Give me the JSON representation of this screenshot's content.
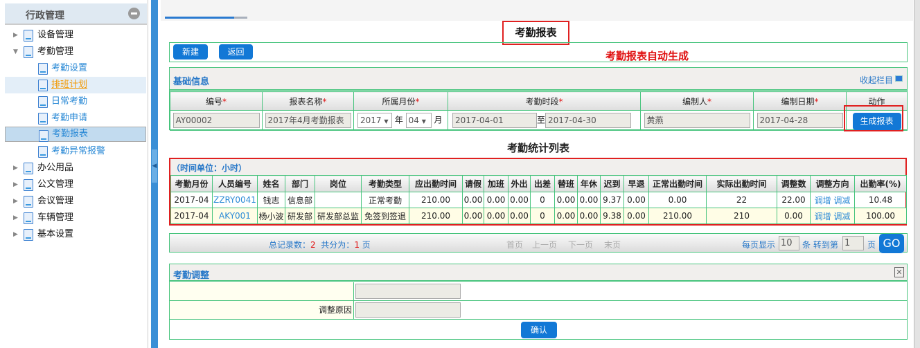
{
  "sidebar": {
    "title": "行政管理",
    "items": [
      {
        "label": "设备管理",
        "level": "top",
        "expanded": false
      },
      {
        "label": "考勤管理",
        "level": "top",
        "expanded": true
      },
      {
        "label": "考勤设置",
        "level": "sub"
      },
      {
        "label": "排班计划",
        "level": "sub",
        "state": "hover"
      },
      {
        "label": "日常考勤",
        "level": "sub"
      },
      {
        "label": "考勤申请",
        "level": "sub"
      },
      {
        "label": "考勤报表",
        "level": "sub",
        "state": "selected"
      },
      {
        "label": "考勤异常报警",
        "level": "sub"
      },
      {
        "label": "办公用品",
        "level": "top",
        "expanded": false
      },
      {
        "label": "公文管理",
        "level": "top",
        "expanded": false
      },
      {
        "label": "会议管理",
        "level": "top",
        "expanded": false
      },
      {
        "label": "车辆管理",
        "level": "top",
        "expanded": false
      },
      {
        "label": "基本设置",
        "level": "top",
        "expanded": false
      }
    ]
  },
  "page": {
    "title": "考勤报表",
    "note": "考勤报表自动生成"
  },
  "toolbar": {
    "new": "新建",
    "back": "返回"
  },
  "basic": {
    "title": "基础信息",
    "collapse": "收起栏目",
    "headers": [
      "编号",
      "报表名称",
      "所属月份",
      "考勤时段",
      "编制人",
      "编制日期",
      "动作"
    ],
    "code": "AY00002",
    "name": "2017年4月考勤报表",
    "year": "2017",
    "year_unit": "年",
    "month": "04",
    "month_unit": "月",
    "start": "2017-04-01",
    "to": "至",
    "end": "2017-04-30",
    "maker": "黄燕",
    "date": "2017-04-28",
    "generate": "生成报表"
  },
  "stats": {
    "title": "考勤统计列表",
    "unit": "（时间单位：小时）",
    "headers": [
      "考勤月份",
      "人员编号",
      "姓名",
      "部门",
      "岗位",
      "考勤类型",
      "应出勤时间",
      "请假",
      "加班",
      "外出",
      "出差",
      "替班",
      "年休",
      "迟到",
      "早退",
      "正常出勤时间",
      "实际出勤时间",
      "调整数",
      "调整方向",
      "出勤率(%)"
    ],
    "rows": [
      [
        "2017-04",
        "ZZRY0041",
        "钱志",
        "信息部",
        "",
        "正常考勤",
        "210.00",
        "0.00",
        "0.00",
        "0.00",
        "0",
        "0.00",
        "0.00",
        "9.37",
        "0.00",
        "0.00",
        "22",
        "22.00",
        "调增",
        "调减",
        "10.48"
      ],
      [
        "2017-04",
        "AKY001",
        "杨小波",
        "研发部",
        "研发部总监",
        "免签到签退",
        "210.00",
        "0.00",
        "0.00",
        "0.00",
        "0",
        "0.00",
        "0.00",
        "9.38",
        "0.00",
        "210.00",
        "210",
        "0.00",
        "调增",
        "调减",
        "100.00"
      ]
    ]
  },
  "pager": {
    "total_label": "总记录数：",
    "total": "2",
    "pages_label": "共分为：",
    "pages": "1",
    "page_unit": "页",
    "first": "首页",
    "prev": "上一页",
    "next": "下一页",
    "last": "末页",
    "per_page_label": "每页显示",
    "per_page": "10",
    "goto_label": "条 转到第",
    "goto": "1",
    "goto_unit": "页",
    "go": "GO"
  },
  "adjust": {
    "title": "考勤调整",
    "reason_label": "调整原因",
    "confirm": "确认"
  }
}
